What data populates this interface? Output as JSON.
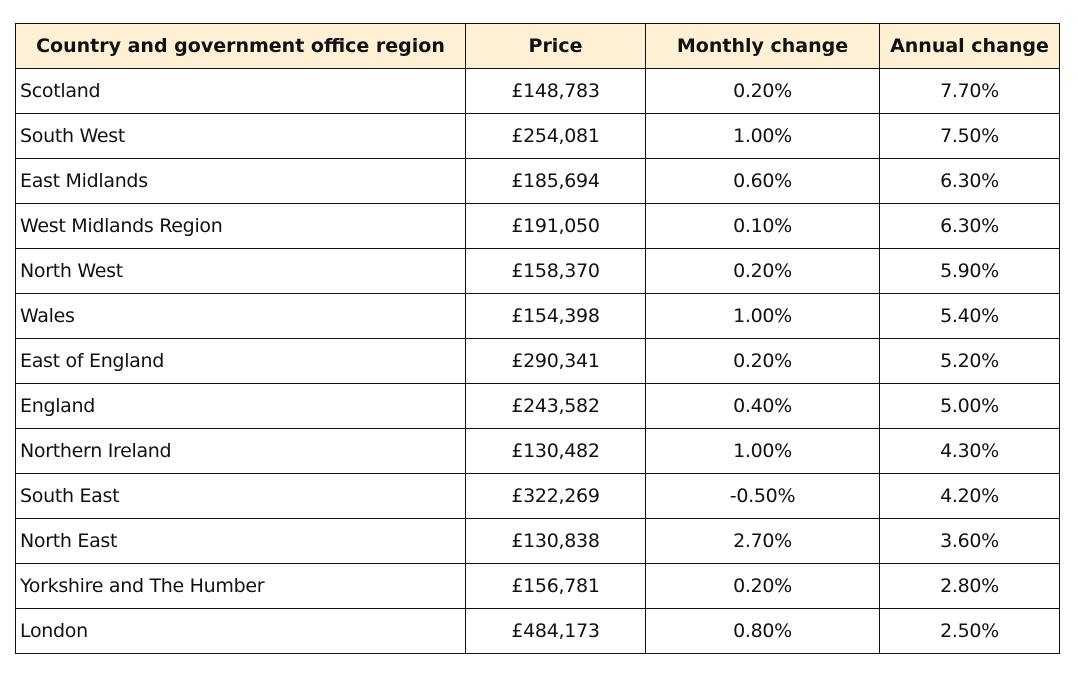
{
  "table": {
    "header": [
      "Country and government office region",
      "Price",
      "Monthly change",
      "Annual change"
    ],
    "rows": [
      [
        "Scotland",
        "£148,783",
        "0.20%",
        "7.70%"
      ],
      [
        "South West",
        "£254,081",
        "1.00%",
        "7.50%"
      ],
      [
        "East Midlands",
        "£185,694",
        "0.60%",
        "6.30%"
      ],
      [
        "West Midlands Region",
        "£191,050",
        "0.10%",
        "6.30%"
      ],
      [
        "North West",
        "£158,370",
        "0.20%",
        "5.90%"
      ],
      [
        "Wales",
        "£154,398",
        "1.00%",
        "5.40%"
      ],
      [
        "East of England",
        "£290,341",
        "0.20%",
        "5.20%"
      ],
      [
        "England",
        "£243,582",
        "0.40%",
        "5.00%"
      ],
      [
        "Northern Ireland",
        "£130,482",
        "1.00%",
        "4.30%"
      ],
      [
        "South East",
        "£322,269",
        "-0.50%",
        "4.20%"
      ],
      [
        "North East",
        "£130,838",
        "2.70%",
        "3.60%"
      ],
      [
        "Yorkshire and The Humber",
        "£156,781",
        "0.20%",
        "2.80%"
      ],
      [
        "London",
        "£484,173",
        "0.80%",
        "2.50%"
      ]
    ]
  }
}
